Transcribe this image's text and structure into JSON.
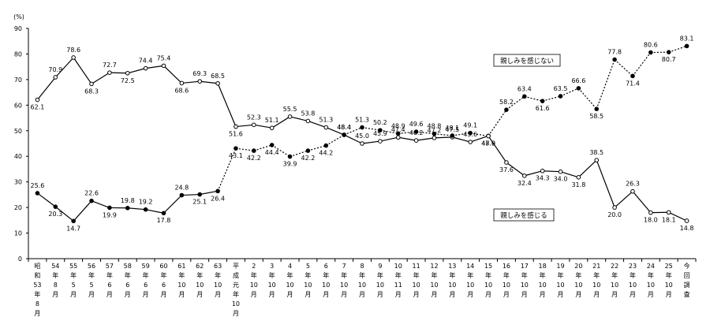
{
  "chart_data": {
    "type": "line",
    "y_unit": "(%)",
    "ylim": [
      0,
      90
    ],
    "yticks": [
      0,
      10,
      20,
      30,
      40,
      50,
      60,
      70,
      80,
      90
    ],
    "grid": false,
    "categories": [
      [
        "昭",
        "和",
        "53",
        "年",
        "8",
        "月"
      ],
      [
        "54",
        "年",
        "8",
        "月"
      ],
      [
        "55",
        "年",
        "5",
        "月"
      ],
      [
        "56",
        "年",
        "5",
        "月"
      ],
      [
        "57",
        "年",
        "6",
        "月"
      ],
      [
        "58",
        "年",
        "6",
        "月"
      ],
      [
        "59",
        "年",
        "6",
        "月"
      ],
      [
        "60",
        "年",
        "6",
        "月"
      ],
      [
        "61",
        "年",
        "10",
        "月"
      ],
      [
        "62",
        "年",
        "10",
        "月"
      ],
      [
        "63",
        "年",
        "10",
        "月"
      ],
      [
        "平",
        "成",
        "元",
        "年",
        "10",
        "月"
      ],
      [
        "2",
        "年",
        "10",
        "月"
      ],
      [
        "3",
        "年",
        "10",
        "月"
      ],
      [
        "4",
        "年",
        "10",
        "月"
      ],
      [
        "5",
        "年",
        "10",
        "月"
      ],
      [
        "6",
        "年",
        "10",
        "月"
      ],
      [
        "7",
        "年",
        "10",
        "月"
      ],
      [
        "8",
        "年",
        "10",
        "月"
      ],
      [
        "9",
        "年",
        "10",
        "月"
      ],
      [
        "10",
        "年",
        "11",
        "月"
      ],
      [
        "11",
        "年",
        "10",
        "月"
      ],
      [
        "12",
        "年",
        "10",
        "月"
      ],
      [
        "13",
        "年",
        "10",
        "月"
      ],
      [
        "14",
        "年",
        "10",
        "月"
      ],
      [
        "15",
        "年",
        "10",
        "月"
      ],
      [
        "16",
        "年",
        "10",
        "月"
      ],
      [
        "17",
        "年",
        "10",
        "月"
      ],
      [
        "18",
        "年",
        "10",
        "月"
      ],
      [
        "19",
        "年",
        "10",
        "月"
      ],
      [
        "20",
        "年",
        "10",
        "月"
      ],
      [
        "21",
        "年",
        "10",
        "月"
      ],
      [
        "22",
        "年",
        "10",
        "月"
      ],
      [
        "23",
        "年",
        "10",
        "月"
      ],
      [
        "24",
        "年",
        "10",
        "月"
      ],
      [
        "25",
        "年",
        "10",
        "月"
      ],
      [
        "今",
        "回",
        "調",
        "査"
      ]
    ],
    "series": [
      {
        "name": "親しみを感じない",
        "style": "mixed",
        "values": [
          62.1,
          70.9,
          78.6,
          68.3,
          72.7,
          72.5,
          74.4,
          75.4,
          68.6,
          69.3,
          68.5,
          51.6,
          52.3,
          51.1,
          55.5,
          53.8,
          51.3,
          48.4,
          45.0,
          45.9,
          47.4,
          46.2,
          47.2,
          47.5,
          45.6,
          48.0,
          58.2,
          63.4,
          61.6,
          63.5,
          66.6,
          58.5,
          77.8,
          71.4,
          80.6,
          80.7,
          83.1
        ],
        "labels": [
          "62.1",
          "70.9",
          "78.6",
          "68.3",
          "72.7",
          "72.5",
          "74.4",
          "75.4",
          "68.6",
          "69.3",
          "68.5",
          "51.6",
          "52.3",
          "51.1",
          "55.5",
          "53.8",
          "51.3",
          "48.4",
          "45.0",
          "45.9",
          "47.4",
          "46.2",
          "47.2",
          "47.5",
          "45.6",
          "48.0",
          "58.2",
          "63.4",
          "61.6",
          "63.5",
          "66.6",
          "58.5",
          "77.8",
          "71.4",
          "80.6",
          "80.7",
          "83.1"
        ],
        "markers": "open-circle-then-filled-dot"
      },
      {
        "name": "親しみを感じる",
        "style": "mixed",
        "values": [
          25.6,
          20.3,
          14.7,
          22.6,
          19.9,
          19.8,
          19.2,
          17.8,
          24.8,
          25.1,
          26.4,
          43.1,
          42.2,
          44.4,
          39.9,
          42.2,
          44.2,
          48.4,
          51.3,
          50.2,
          48.9,
          49.6,
          48.8,
          48.1,
          49.1,
          47.9,
          37.6,
          32.4,
          34.3,
          34.0,
          31.8,
          38.5,
          20.0,
          26.3,
          18.0,
          18.1,
          14.8
        ],
        "labels": [
          "25.6",
          "20.3",
          "14.7",
          "22.6",
          "19.9",
          "19.8",
          "19.2",
          "17.8",
          "24.8",
          "25.1",
          "26.4",
          "43.1",
          "42.2",
          "44.4",
          "39.9",
          "42.2",
          "44.2",
          "48.4",
          "51.3",
          "50.2",
          "48.9",
          "49.6",
          "48.8",
          "48.1",
          "49.1",
          "47.9",
          "37.6",
          "32.4",
          "34.3",
          "34.0",
          "31.8",
          "38.5",
          "20.0",
          "26.3",
          "18.0",
          "18.1",
          "14.8"
        ],
        "markers": "filled-dot-then-open-circle"
      }
    ],
    "legend": [
      {
        "text": "親しみを感じない",
        "placement": "upper-right"
      },
      {
        "text": "親しみを感じる",
        "placement": "lower-right"
      }
    ]
  }
}
